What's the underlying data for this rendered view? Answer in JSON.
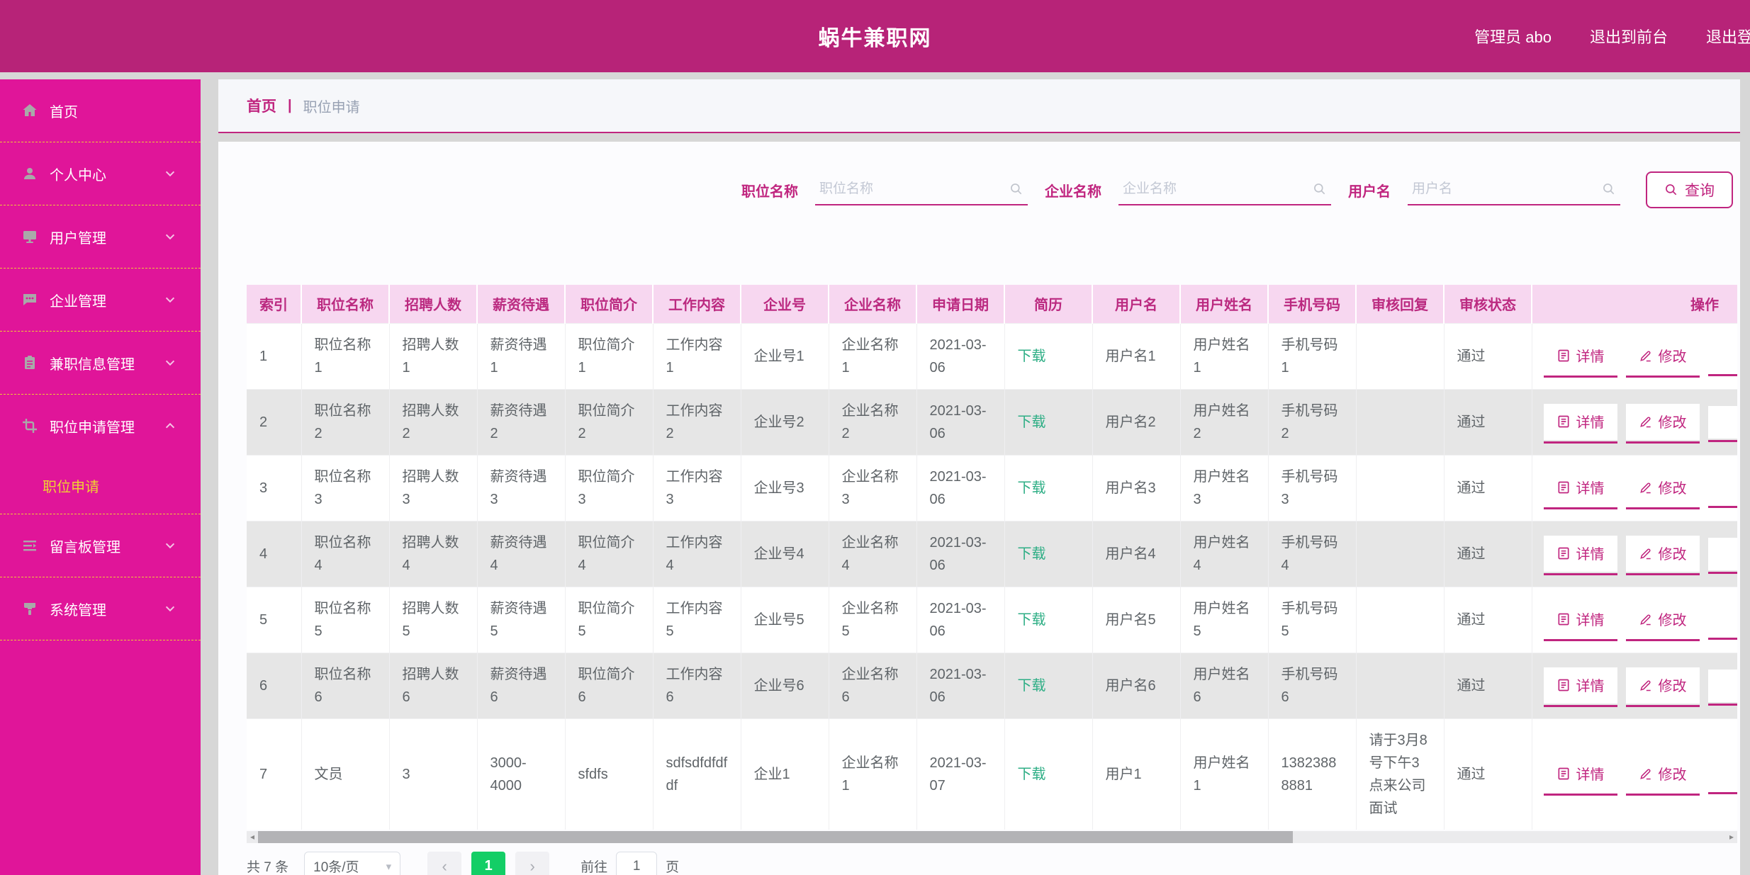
{
  "colors": {
    "topbar": "#b72378",
    "sidebar_pink": "#e01599",
    "brand_magenta": "#c0257f",
    "menu_highlight_yellow": "#f0d232",
    "table_header_bg": "#f7d7f0",
    "download_green": "#2eae85",
    "pager_active_green": "#13ce66"
  },
  "topbar": {
    "title": "蜗牛兼职网",
    "links": [
      {
        "label": "管理员 abo"
      },
      {
        "label": "退出到前台"
      },
      {
        "label": "退出登录"
      }
    ]
  },
  "sidebar": {
    "items": [
      {
        "label": "首页",
        "icon": "home-icon"
      },
      {
        "label": "个人中心",
        "icon": "user-icon",
        "chevron": "down"
      },
      {
        "label": "用户管理",
        "icon": "monitor-icon",
        "chevron": "down"
      },
      {
        "label": "企业管理",
        "icon": "chat-icon",
        "chevron": "down"
      },
      {
        "label": "兼职信息管理",
        "icon": "clipboard-icon",
        "chevron": "down"
      },
      {
        "label": "职位申请管理",
        "icon": "crop-icon",
        "chevron": "up"
      },
      {
        "label": "留言板管理",
        "icon": "board-icon",
        "chevron": "down"
      },
      {
        "label": "系统管理",
        "icon": "brush-icon",
        "chevron": "down"
      }
    ],
    "submenu": {
      "label": "职位申请"
    }
  },
  "breadcrumb": {
    "home": "首页",
    "separator": "|",
    "current": "职位申请"
  },
  "search": {
    "fields": [
      {
        "label": "职位名称",
        "placeholder": "职位名称",
        "value": ""
      },
      {
        "label": "企业名称",
        "placeholder": "企业名称",
        "value": ""
      },
      {
        "label": "用户名",
        "placeholder": "用户名",
        "value": ""
      }
    ],
    "button_label": "查询"
  },
  "table": {
    "headers": [
      "索引",
      "职位名称",
      "招聘人数",
      "薪资待遇",
      "职位简介",
      "工作内容",
      "企业号",
      "企业名称",
      "申请日期",
      "简历",
      "用户名",
      "用户姓名",
      "手机号码",
      "审核回复",
      "审核状态",
      "操作"
    ],
    "actions": {
      "detail": "详情",
      "edit": "修改"
    },
    "rows": [
      {
        "index": "1",
        "position": "职位名称1",
        "headcount": "招聘人数1",
        "salary": "薪资待遇1",
        "intro": "职位简介1",
        "content": "工作内容1",
        "company_no": "企业号1",
        "company_name": "企业名称1",
        "date": "2021-03-06",
        "resume": "下载",
        "username": "用户名1",
        "realname": "用户姓名1",
        "phone": "手机号码1",
        "reply": "",
        "status": "通过"
      },
      {
        "index": "2",
        "position": "职位名称2",
        "headcount": "招聘人数2",
        "salary": "薪资待遇2",
        "intro": "职位简介2",
        "content": "工作内容2",
        "company_no": "企业号2",
        "company_name": "企业名称2",
        "date": "2021-03-06",
        "resume": "下载",
        "username": "用户名2",
        "realname": "用户姓名2",
        "phone": "手机号码2",
        "reply": "",
        "status": "通过"
      },
      {
        "index": "3",
        "position": "职位名称3",
        "headcount": "招聘人数3",
        "salary": "薪资待遇3",
        "intro": "职位简介3",
        "content": "工作内容3",
        "company_no": "企业号3",
        "company_name": "企业名称3",
        "date": "2021-03-06",
        "resume": "下载",
        "username": "用户名3",
        "realname": "用户姓名3",
        "phone": "手机号码3",
        "reply": "",
        "status": "通过"
      },
      {
        "index": "4",
        "position": "职位名称4",
        "headcount": "招聘人数4",
        "salary": "薪资待遇4",
        "intro": "职位简介4",
        "content": "工作内容4",
        "company_no": "企业号4",
        "company_name": "企业名称4",
        "date": "2021-03-06",
        "resume": "下载",
        "username": "用户名4",
        "realname": "用户姓名4",
        "phone": "手机号码4",
        "reply": "",
        "status": "通过"
      },
      {
        "index": "5",
        "position": "职位名称5",
        "headcount": "招聘人数5",
        "salary": "薪资待遇5",
        "intro": "职位简介5",
        "content": "工作内容5",
        "company_no": "企业号5",
        "company_name": "企业名称5",
        "date": "2021-03-06",
        "resume": "下载",
        "username": "用户名5",
        "realname": "用户姓名5",
        "phone": "手机号码5",
        "reply": "",
        "status": "通过"
      },
      {
        "index": "6",
        "position": "职位名称6",
        "headcount": "招聘人数6",
        "salary": "薪资待遇6",
        "intro": "职位简介6",
        "content": "工作内容6",
        "company_no": "企业号6",
        "company_name": "企业名称6",
        "date": "2021-03-06",
        "resume": "下载",
        "username": "用户名6",
        "realname": "用户姓名6",
        "phone": "手机号码6",
        "reply": "",
        "status": "通过"
      },
      {
        "index": "7",
        "position": "文员",
        "headcount": "3",
        "salary": "3000-4000",
        "intro": "sfdfs",
        "content": "sdfsdfdfdfdf",
        "company_no": "企业1",
        "company_name": "企业名称1",
        "date": "2021-03-07",
        "resume": "下载",
        "username": "用户1",
        "realname": "用户姓名1",
        "phone": "13823888881",
        "reply": "请于3月8号下午3点来公司面试",
        "status": "通过"
      }
    ]
  },
  "scrollbar": {
    "left_arrow": "◂",
    "right_arrow": "▸"
  },
  "pagination": {
    "total": "共 7 条",
    "page_size": "10条/页",
    "prev": "‹",
    "page": "1",
    "next": "›",
    "goto_label": "前往",
    "goto_value": "1",
    "goto_suffix": "页"
  }
}
